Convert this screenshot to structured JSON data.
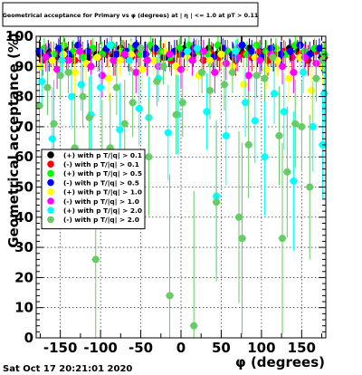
{
  "chart_data": {
    "type": "scatter",
    "title": "Geometrical acceptance for Primary vs φ (degrees) at | η | <= 1.0 at pT > 0.11",
    "xlabel": "φ (degrees)",
    "ylabel": "Geometrical acceptance (%)",
    "xlim": [
      -180,
      180
    ],
    "ylim": [
      0,
      100
    ],
    "x_ticks": [
      "-150",
      "-100",
      "-50",
      "0",
      "50",
      "100",
      "150"
    ],
    "y_ticks": [
      "0",
      "10",
      "20",
      "30",
      "40",
      "50",
      "60",
      "70",
      "80",
      "90",
      "100"
    ],
    "grid": true,
    "legend_position": "left-middle",
    "date_label": "Sat Oct 17 20:21:01 2020",
    "series": [
      {
        "name": "(+) with p T/|q| > 0.1",
        "color": "#000000",
        "points": [
          [
            -175,
            94
          ],
          [
            -165,
            95
          ],
          [
            -155,
            93
          ],
          [
            -145,
            96
          ],
          [
            -135,
            94
          ],
          [
            -125,
            95
          ],
          [
            -115,
            93
          ],
          [
            -105,
            94
          ],
          [
            -95,
            95
          ],
          [
            -85,
            94
          ],
          [
            -75,
            96
          ],
          [
            -65,
            93
          ],
          [
            -55,
            95
          ],
          [
            -45,
            94
          ],
          [
            -35,
            96
          ],
          [
            -25,
            95
          ],
          [
            -15,
            94
          ],
          [
            -5,
            95
          ],
          [
            5,
            96
          ],
          [
            15,
            94
          ],
          [
            25,
            95
          ],
          [
            35,
            96
          ],
          [
            45,
            94
          ],
          [
            55,
            95
          ],
          [
            65,
            93
          ],
          [
            75,
            95
          ],
          [
            85,
            96
          ],
          [
            95,
            94
          ],
          [
            105,
            95
          ],
          [
            115,
            93
          ],
          [
            125,
            94
          ],
          [
            135,
            96
          ],
          [
            145,
            95
          ],
          [
            155,
            94
          ],
          [
            165,
            95
          ],
          [
            175,
            93
          ]
        ]
      },
      {
        "name": "(-) with p T/|q| > 0.1",
        "color": "#ff0000",
        "points": [
          [
            -172,
            92
          ],
          [
            -162,
            94
          ],
          [
            -152,
            95
          ],
          [
            -142,
            93
          ],
          [
            -132,
            92
          ],
          [
            -122,
            94
          ],
          [
            -112,
            95
          ],
          [
            -102,
            93
          ],
          [
            -92,
            94
          ],
          [
            -82,
            92
          ],
          [
            -72,
            95
          ],
          [
            -62,
            93
          ],
          [
            -52,
            94
          ],
          [
            -42,
            92
          ],
          [
            -32,
            95
          ],
          [
            -22,
            93
          ],
          [
            -12,
            92
          ],
          [
            -2,
            94
          ],
          [
            8,
            93
          ],
          [
            18,
            95
          ],
          [
            28,
            92
          ],
          [
            38,
            94
          ],
          [
            48,
            93
          ],
          [
            58,
            95
          ],
          [
            68,
            92
          ],
          [
            78,
            94
          ],
          [
            88,
            93
          ],
          [
            98,
            95
          ],
          [
            108,
            92
          ],
          [
            118,
            94
          ],
          [
            128,
            95
          ],
          [
            138,
            93
          ],
          [
            148,
            94
          ],
          [
            158,
            92
          ],
          [
            168,
            95
          ],
          [
            178,
            93
          ]
        ]
      },
      {
        "name": "(+) with p T/|q| > 0.5",
        "color": "#00ff00",
        "points": [
          [
            -170,
            96
          ],
          [
            -158,
            94
          ],
          [
            -146,
            97
          ],
          [
            -134,
            95
          ],
          [
            -122,
            93
          ],
          [
            -110,
            96
          ],
          [
            -98,
            94
          ],
          [
            -86,
            97
          ],
          [
            -74,
            95
          ],
          [
            -62,
            96
          ],
          [
            -50,
            94
          ],
          [
            -38,
            97
          ],
          [
            -26,
            95
          ],
          [
            -14,
            93
          ],
          [
            -2,
            96
          ],
          [
            10,
            97
          ],
          [
            22,
            95
          ],
          [
            34,
            94
          ],
          [
            46,
            97
          ],
          [
            58,
            95
          ],
          [
            70,
            96
          ],
          [
            82,
            94
          ],
          [
            94,
            97
          ],
          [
            106,
            95
          ],
          [
            118,
            96
          ],
          [
            130,
            94
          ],
          [
            142,
            97
          ],
          [
            154,
            95
          ],
          [
            166,
            96
          ],
          [
            178,
            94
          ]
        ]
      },
      {
        "name": "(-) with p T/|q| > 0.5",
        "color": "#0000ff",
        "points": [
          [
            -176,
            95
          ],
          [
            -164,
            93
          ],
          [
            -152,
            96
          ],
          [
            -140,
            94
          ],
          [
            -128,
            97
          ],
          [
            -116,
            95
          ],
          [
            -104,
            93
          ],
          [
            -92,
            96
          ],
          [
            -80,
            94
          ],
          [
            -68,
            95
          ],
          [
            -56,
            97
          ],
          [
            -44,
            94
          ],
          [
            -32,
            96
          ],
          [
            -20,
            93
          ],
          [
            -8,
            95
          ],
          [
            4,
            94
          ],
          [
            16,
            96
          ],
          [
            28,
            95
          ],
          [
            40,
            93
          ],
          [
            52,
            96
          ],
          [
            64,
            94
          ],
          [
            76,
            97
          ],
          [
            88,
            95
          ],
          [
            100,
            93
          ],
          [
            112,
            96
          ],
          [
            124,
            94
          ],
          [
            136,
            95
          ],
          [
            148,
            97
          ],
          [
            160,
            94
          ],
          [
            172,
            96
          ]
        ]
      },
      {
        "name": "(+) with p T/|q| > 1.0",
        "color": "#ffff00",
        "points": [
          [
            -174,
            90
          ],
          [
            -160,
            92
          ],
          [
            -146,
            94
          ],
          [
            -132,
            88
          ],
          [
            -118,
            91
          ],
          [
            -104,
            93
          ],
          [
            -90,
            86
          ],
          [
            -76,
            92
          ],
          [
            -62,
            94
          ],
          [
            -48,
            89
          ],
          [
            -34,
            92
          ],
          [
            -20,
            95
          ],
          [
            -6,
            90
          ],
          [
            8,
            93
          ],
          [
            22,
            87
          ],
          [
            36,
            92
          ],
          [
            50,
            94
          ],
          [
            64,
            90
          ],
          [
            78,
            84
          ],
          [
            92,
            93
          ],
          [
            106,
            89
          ],
          [
            120,
            92
          ],
          [
            134,
            86
          ],
          [
            148,
            93
          ],
          [
            162,
            82
          ],
          [
            176,
            90
          ]
        ]
      },
      {
        "name": "(-) with p T/|q| > 1.0",
        "color": "#ff00ff",
        "points": [
          [
            -168,
            93
          ],
          [
            -154,
            89
          ],
          [
            -140,
            92
          ],
          [
            -126,
            95
          ],
          [
            -112,
            90
          ],
          [
            -98,
            87
          ],
          [
            -84,
            92
          ],
          [
            -70,
            94
          ],
          [
            -56,
            88
          ],
          [
            -42,
            92
          ],
          [
            -28,
            90
          ],
          [
            -14,
            94
          ],
          [
            0,
            89
          ],
          [
            14,
            92
          ],
          [
            28,
            95
          ],
          [
            42,
            88
          ],
          [
            56,
            91
          ],
          [
            70,
            93
          ],
          [
            84,
            87
          ],
          [
            98,
            92
          ],
          [
            112,
            94
          ],
          [
            126,
            90
          ],
          [
            140,
            88
          ],
          [
            154,
            93
          ],
          [
            168,
            91
          ]
        ]
      },
      {
        "name": "(+) with p T/|q| > 2.0",
        "color": "#00ffff",
        "points": [
          [
            -173,
            85
          ],
          [
            -160,
            66
          ],
          [
            -148,
            92
          ],
          [
            -136,
            80
          ],
          [
            -124,
            84
          ],
          [
            -112,
            74
          ],
          [
            -100,
            83
          ],
          [
            -88,
            97
          ],
          [
            -76,
            69
          ],
          [
            -64,
            92
          ],
          [
            -52,
            76
          ],
          [
            -40,
            73
          ],
          [
            -28,
            86
          ],
          [
            -16,
            68
          ],
          [
            -4,
            74
          ],
          [
            8,
            95
          ],
          [
            20,
            96
          ],
          [
            32,
            75
          ],
          [
            44,
            47
          ],
          [
            56,
            67
          ],
          [
            68,
            95
          ],
          [
            80,
            78
          ],
          [
            92,
            72
          ],
          [
            104,
            60
          ],
          [
            116,
            81
          ],
          [
            128,
            75
          ],
          [
            140,
            52
          ],
          [
            152,
            88
          ],
          [
            164,
            70
          ],
          [
            176,
            64
          ],
          [
            178,
            81
          ]
        ]
      },
      {
        "name": "(-) with p T/|q| > 2.0",
        "color": "#66cc66",
        "points": [
          [
            -176,
            77
          ],
          [
            -166,
            83
          ],
          [
            -158,
            71
          ],
          [
            -150,
            87
          ],
          [
            -140,
            88
          ],
          [
            -132,
            63
          ],
          [
            -122,
            80
          ],
          [
            -114,
            73
          ],
          [
            -106,
            26
          ],
          [
            -98,
            59
          ],
          [
            -88,
            63
          ],
          [
            -80,
            83
          ],
          [
            -70,
            71
          ],
          [
            -60,
            78
          ],
          [
            -50,
            96
          ],
          [
            -40,
            60
          ],
          [
            -30,
            85
          ],
          [
            -22,
            90
          ],
          [
            -14,
            14
          ],
          [
            -6,
            74
          ],
          [
            2,
            78
          ],
          [
            16,
            4
          ],
          [
            26,
            88
          ],
          [
            36,
            82
          ],
          [
            44,
            45
          ],
          [
            54,
            84
          ],
          [
            64,
            88
          ],
          [
            72,
            40
          ],
          [
            76,
            33
          ],
          [
            84,
            64
          ],
          [
            94,
            87
          ],
          [
            104,
            86
          ],
          [
            114,
            93
          ],
          [
            122,
            67
          ],
          [
            126,
            33
          ],
          [
            132,
            55
          ],
          [
            142,
            71
          ],
          [
            150,
            70
          ],
          [
            160,
            50
          ],
          [
            168,
            86
          ],
          [
            176,
            92
          ]
        ]
      }
    ]
  }
}
